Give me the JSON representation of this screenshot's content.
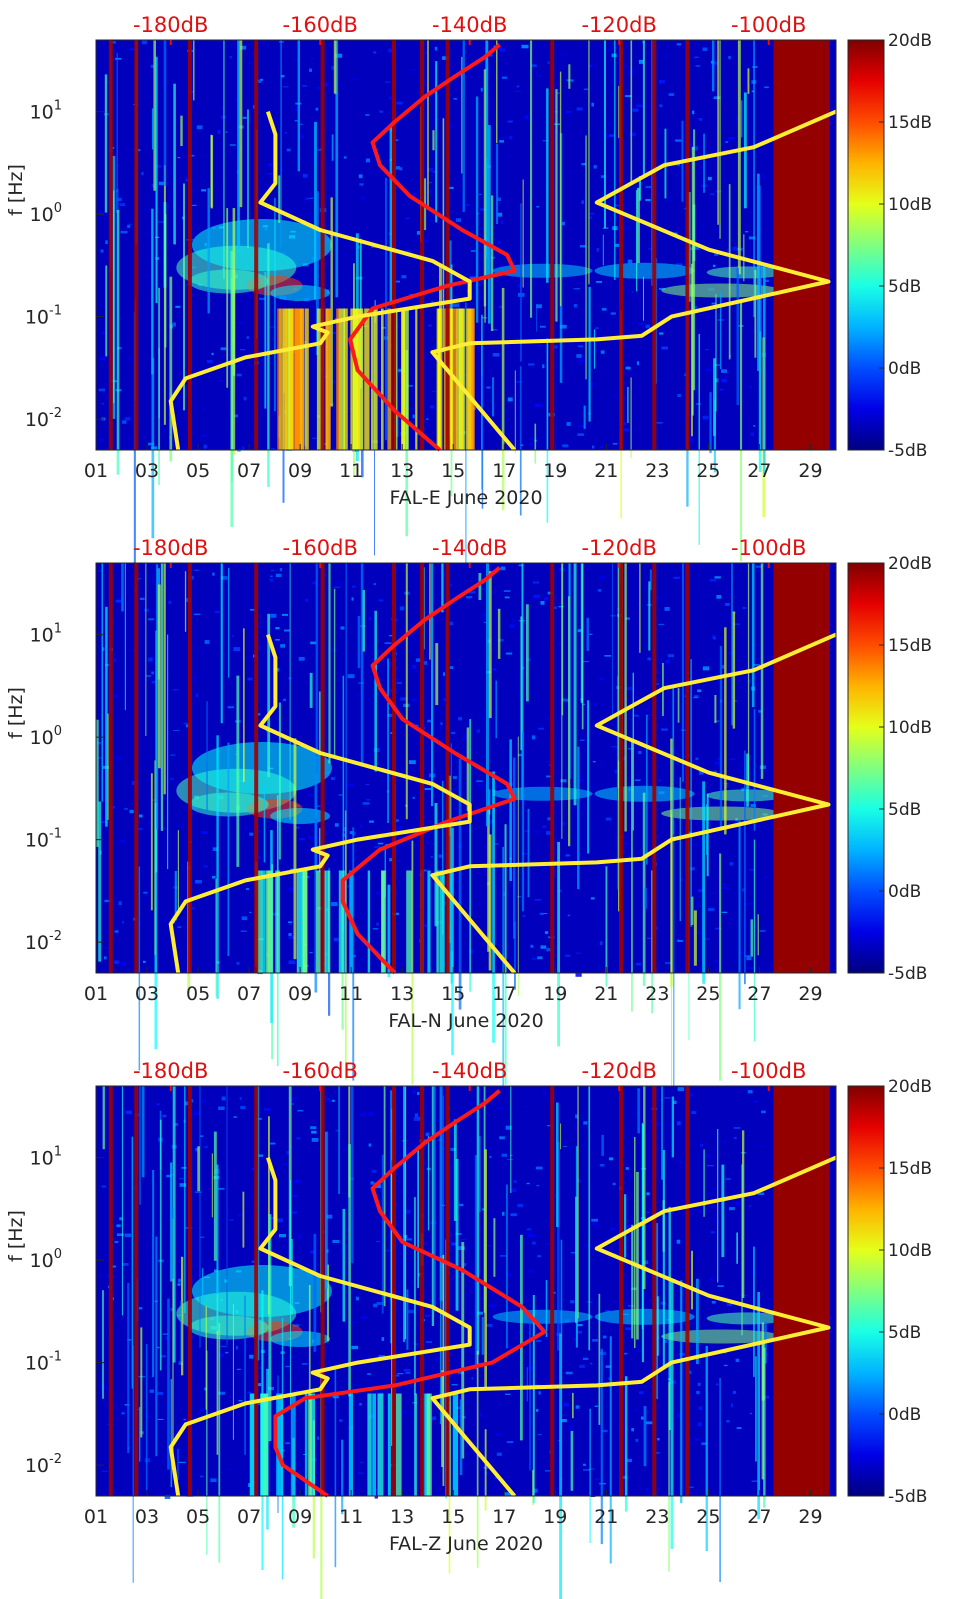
{
  "figure": {
    "colors": {
      "spectral_line": "#ff1a1a",
      "noise_model": "#ffee33",
      "axis": "#262626",
      "top_scale": "#e01010"
    },
    "colormap_name": "jet"
  },
  "chart_data": [
    {
      "type": "heatmap",
      "title": "",
      "xlabel": "FAL-E June 2020",
      "ylabel": "f [Hz]",
      "x_tick_labels": [
        "01",
        "03",
        "05",
        "07",
        "09",
        "11",
        "13",
        "15",
        "17",
        "19",
        "21",
        "23",
        "25",
        "27",
        "29"
      ],
      "x_ticks": [
        1,
        3,
        5,
        7,
        9,
        11,
        13,
        15,
        17,
        19,
        21,
        23,
        25,
        27,
        29
      ],
      "xlim": [
        1,
        30
      ],
      "ylim": [
        0.005,
        50
      ],
      "yscale": "log",
      "y_ticks": [
        0.01,
        0.1,
        1,
        10
      ],
      "y_tick_labels": [
        {
          "base": "10",
          "exp": "-2"
        },
        {
          "base": "10",
          "exp": "-1"
        },
        {
          "base": "10",
          "exp": "0"
        },
        {
          "base": "10",
          "exp": "1"
        }
      ],
      "top_axis_labels": [
        "-180dB",
        "-160dB",
        "-140dB",
        "-120dB",
        "-100dB"
      ],
      "top_axis_values": [
        -180,
        -160,
        -140,
        -120,
        -100
      ],
      "top_axis_range": [
        -190,
        -91
      ],
      "colorbar": {
        "labels": [
          "20dB",
          "15dB",
          "10dB",
          "5dB",
          "0dB",
          "-5dB"
        ],
        "values": [
          20,
          15,
          10,
          5,
          0,
          -5
        ],
        "range": [
          -5,
          20
        ]
      },
      "series": [
        {
          "name": "red-spectrum",
          "color": "#ff1a1a",
          "points": [
            [
              -144,
              0.005
            ],
            [
              -150,
              0.012
            ],
            [
              -155,
              0.03
            ],
            [
              -156,
              0.06
            ],
            [
              -153,
              0.12
            ],
            [
              -143,
              0.2
            ],
            [
              -134,
              0.28
            ],
            [
              -135,
              0.4
            ],
            [
              -141,
              0.7
            ],
            [
              -148,
              1.5
            ],
            [
              -152,
              3
            ],
            [
              -153,
              5
            ],
            [
              -150,
              8
            ],
            [
              -146,
              14
            ],
            [
              -142,
              22
            ],
            [
              -138,
              34
            ],
            [
              -136,
              45
            ]
          ]
        },
        {
          "name": "noise-model-low",
          "color": "#ffee33",
          "points": [
            [
              -179,
              0.005
            ],
            [
              -180,
              0.015
            ],
            [
              -178,
              0.025
            ],
            [
              -170,
              0.04
            ],
            [
              -160,
              0.055
            ],
            [
              -159,
              0.07
            ],
            [
              -161,
              0.08
            ],
            [
              -155,
              0.1
            ],
            [
              -140,
              0.15
            ],
            [
              -140,
              0.22
            ],
            [
              -145,
              0.35
            ],
            [
              -160,
              0.7
            ],
            [
              -168,
              1.3
            ],
            [
              -166,
              2
            ],
            [
              -166,
              6
            ],
            [
              -167,
              10
            ]
          ]
        },
        {
          "name": "noise-model-high",
          "color": "#ffee33",
          "points": [
            [
              -134,
              0.005
            ],
            [
              -145,
              0.045
            ],
            [
              -140,
              0.055
            ],
            [
              -123,
              0.06
            ],
            [
              -117,
              0.065
            ],
            [
              -113,
              0.1
            ],
            [
              -92,
              0.22
            ],
            [
              -108,
              0.45
            ],
            [
              -123,
              1.3
            ],
            [
              -114,
              3
            ],
            [
              -102,
              4.5
            ],
            [
              -91,
              10
            ]
          ]
        }
      ]
    },
    {
      "type": "heatmap",
      "title": "",
      "xlabel": "FAL-N June 2020",
      "ylabel": "f [Hz]",
      "x_tick_labels": [
        "01",
        "03",
        "05",
        "07",
        "09",
        "11",
        "13",
        "15",
        "17",
        "19",
        "21",
        "23",
        "25",
        "27",
        "29"
      ],
      "x_ticks": [
        1,
        3,
        5,
        7,
        9,
        11,
        13,
        15,
        17,
        19,
        21,
        23,
        25,
        27,
        29
      ],
      "xlim": [
        1,
        30
      ],
      "ylim": [
        0.005,
        50
      ],
      "yscale": "log",
      "y_ticks": [
        0.01,
        0.1,
        1,
        10
      ],
      "y_tick_labels": [
        {
          "base": "10",
          "exp": "-2"
        },
        {
          "base": "10",
          "exp": "-1"
        },
        {
          "base": "10",
          "exp": "0"
        },
        {
          "base": "10",
          "exp": "1"
        }
      ],
      "top_axis_labels": [
        "-180dB",
        "-160dB",
        "-140dB",
        "-120dB",
        "-100dB"
      ],
      "top_axis_values": [
        -180,
        -160,
        -140,
        -120,
        -100
      ],
      "top_axis_range": [
        -190,
        -91
      ],
      "colorbar": {
        "labels": [
          "20dB",
          "15dB",
          "10dB",
          "5dB",
          "0dB",
          "-5dB"
        ],
        "values": [
          20,
          15,
          10,
          5,
          0,
          -5
        ],
        "range": [
          -5,
          20
        ]
      },
      "series": [
        {
          "name": "red-spectrum",
          "color": "#ff1a1a",
          "points": [
            [
              -150,
              0.005
            ],
            [
              -155,
              0.012
            ],
            [
              -157,
              0.025
            ],
            [
              -157,
              0.04
            ],
            [
              -152,
              0.08
            ],
            [
              -143,
              0.15
            ],
            [
              -134,
              0.25
            ],
            [
              -135,
              0.35
            ],
            [
              -142,
              0.7
            ],
            [
              -149,
              1.5
            ],
            [
              -152,
              3
            ],
            [
              -153,
              5
            ],
            [
              -150,
              8
            ],
            [
              -146,
              14
            ],
            [
              -142,
              22
            ],
            [
              -138,
              34
            ],
            [
              -136,
              45
            ]
          ]
        },
        {
          "name": "noise-model-low",
          "color": "#ffee33",
          "points": [
            [
              -179,
              0.005
            ],
            [
              -180,
              0.015
            ],
            [
              -178,
              0.025
            ],
            [
              -170,
              0.04
            ],
            [
              -160,
              0.055
            ],
            [
              -159,
              0.07
            ],
            [
              -161,
              0.08
            ],
            [
              -155,
              0.1
            ],
            [
              -140,
              0.15
            ],
            [
              -140,
              0.22
            ],
            [
              -145,
              0.35
            ],
            [
              -160,
              0.7
            ],
            [
              -168,
              1.3
            ],
            [
              -166,
              2
            ],
            [
              -166,
              6
            ],
            [
              -167,
              10
            ]
          ]
        },
        {
          "name": "noise-model-high",
          "color": "#ffee33",
          "points": [
            [
              -134,
              0.005
            ],
            [
              -145,
              0.045
            ],
            [
              -140,
              0.055
            ],
            [
              -123,
              0.06
            ],
            [
              -117,
              0.065
            ],
            [
              -113,
              0.1
            ],
            [
              -92,
              0.22
            ],
            [
              -108,
              0.45
            ],
            [
              -123,
              1.3
            ],
            [
              -114,
              3
            ],
            [
              -102,
              4.5
            ],
            [
              -91,
              10
            ]
          ]
        }
      ]
    },
    {
      "type": "heatmap",
      "title": "",
      "xlabel": "FAL-Z June 2020",
      "ylabel": "f [Hz]",
      "x_tick_labels": [
        "01",
        "03",
        "05",
        "07",
        "09",
        "11",
        "13",
        "15",
        "17",
        "19",
        "21",
        "23",
        "25",
        "27",
        "29"
      ],
      "x_ticks": [
        1,
        3,
        5,
        7,
        9,
        11,
        13,
        15,
        17,
        19,
        21,
        23,
        25,
        27,
        29
      ],
      "xlim": [
        1,
        30
      ],
      "ylim": [
        0.005,
        50
      ],
      "yscale": "log",
      "y_ticks": [
        0.01,
        0.1,
        1,
        10
      ],
      "y_tick_labels": [
        {
          "base": "10",
          "exp": "-2"
        },
        {
          "base": "10",
          "exp": "-1"
        },
        {
          "base": "10",
          "exp": "0"
        },
        {
          "base": "10",
          "exp": "1"
        }
      ],
      "top_axis_labels": [
        "-180dB",
        "-160dB",
        "-140dB",
        "-120dB",
        "-100dB"
      ],
      "top_axis_values": [
        -180,
        -160,
        -140,
        -120,
        -100
      ],
      "top_axis_range": [
        -190,
        -91
      ],
      "colorbar": {
        "labels": [
          "20dB",
          "15dB",
          "10dB",
          "5dB",
          "0dB",
          "-5dB"
        ],
        "values": [
          20,
          15,
          10,
          5,
          0,
          -5
        ],
        "range": [
          -5,
          20
        ]
      },
      "series": [
        {
          "name": "red-spectrum",
          "color": "#ff1a1a",
          "points": [
            [
              -159,
              0.005
            ],
            [
              -165,
              0.01
            ],
            [
              -166,
              0.015
            ],
            [
              -166,
              0.03
            ],
            [
              -162,
              0.045
            ],
            [
              -150,
              0.06
            ],
            [
              -137,
              0.1
            ],
            [
              -130,
              0.2
            ],
            [
              -133,
              0.35
            ],
            [
              -141,
              0.8
            ],
            [
              -149,
              1.5
            ],
            [
              -152,
              3
            ],
            [
              -153,
              5
            ],
            [
              -150,
              8
            ],
            [
              -146,
              14
            ],
            [
              -142,
              22
            ],
            [
              -138,
              34
            ],
            [
              -136,
              45
            ]
          ]
        },
        {
          "name": "noise-model-low",
          "color": "#ffee33",
          "points": [
            [
              -179,
              0.005
            ],
            [
              -180,
              0.015
            ],
            [
              -178,
              0.025
            ],
            [
              -170,
              0.04
            ],
            [
              -160,
              0.055
            ],
            [
              -159,
              0.07
            ],
            [
              -161,
              0.08
            ],
            [
              -155,
              0.1
            ],
            [
              -140,
              0.15
            ],
            [
              -140,
              0.22
            ],
            [
              -145,
              0.35
            ],
            [
              -160,
              0.7
            ],
            [
              -168,
              1.3
            ],
            [
              -166,
              2
            ],
            [
              -166,
              6
            ],
            [
              -167,
              10
            ]
          ]
        },
        {
          "name": "noise-model-high",
          "color": "#ffee33",
          "points": [
            [
              -134,
              0.005
            ],
            [
              -145,
              0.045
            ],
            [
              -140,
              0.055
            ],
            [
              -123,
              0.06
            ],
            [
              -117,
              0.065
            ],
            [
              -113,
              0.1
            ],
            [
              -92,
              0.22
            ],
            [
              -108,
              0.45
            ],
            [
              -123,
              1.3
            ],
            [
              -114,
              3
            ],
            [
              -102,
              4.5
            ],
            [
              -91,
              10
            ]
          ]
        }
      ]
    }
  ]
}
